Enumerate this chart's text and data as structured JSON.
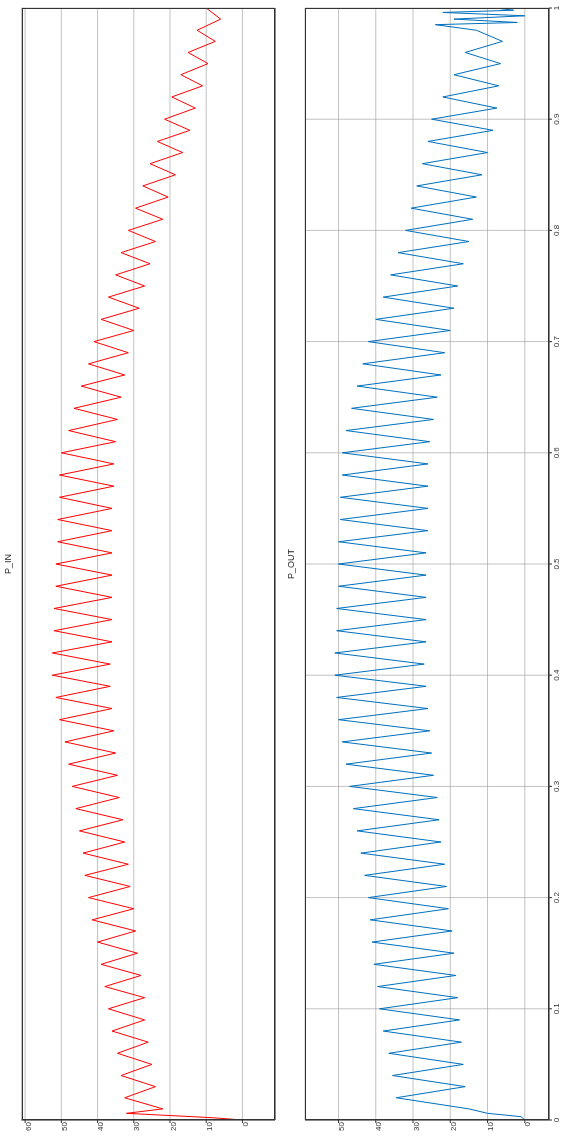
{
  "chart_data": [
    {
      "type": "line",
      "title": "P_IN",
      "color": "#ff0000",
      "grid": true,
      "tick_labels": "x",
      "xlim": [
        61,
        -9
      ],
      "xticks": [
        60,
        50,
        40,
        30,
        20,
        10,
        0
      ],
      "ylim": [
        0,
        1
      ],
      "yticks": [
        0,
        0.1,
        0.2,
        0.3,
        0.4,
        0.5,
        0.6,
        0.7,
        0.8,
        0.9,
        1
      ],
      "x": [
        0,
        8,
        20,
        32,
        22,
        32.5,
        24,
        33.5,
        25,
        34.5,
        26,
        36,
        27,
        37,
        27,
        38,
        28,
        39,
        29,
        40,
        29.5,
        41.5,
        30,
        42.5,
        31,
        43.5,
        31.5,
        44,
        32.5,
        45,
        33,
        46,
        34,
        47,
        34.5,
        48,
        35,
        49,
        35.5,
        50.5,
        36,
        51.5,
        36.5,
        52.5,
        36.5,
        52.5,
        36,
        52,
        36,
        52,
        36,
        51.5,
        36,
        51.5,
        36,
        51,
        36,
        51,
        36,
        50.5,
        35.5,
        50.5,
        35.5,
        50,
        35,
        48,
        34.5,
        46.5,
        33.5,
        44.5,
        32.5,
        42.5,
        31.5,
        41,
        30,
        39,
        28.5,
        37,
        27,
        35,
        25.5,
        33.5,
        24,
        31.5,
        22,
        29.5,
        20.5,
        27.5,
        18.5,
        25.5,
        16.5,
        23.5,
        14.5,
        21.5,
        13,
        19.5,
        11,
        17,
        9.5,
        15,
        7.5,
        12.5,
        6,
        10
      ],
      "values": [
        0,
        0.002,
        0.004,
        0.006,
        0.01,
        0.02,
        0.03,
        0.04,
        0.05,
        0.06,
        0.07,
        0.08,
        0.09,
        0.1,
        0.11,
        0.12,
        0.13,
        0.14,
        0.15,
        0.16,
        0.17,
        0.18,
        0.19,
        0.2,
        0.21,
        0.22,
        0.23,
        0.24,
        0.25,
        0.26,
        0.27,
        0.28,
        0.29,
        0.3,
        0.31,
        0.32,
        0.33,
        0.34,
        0.35,
        0.36,
        0.37,
        0.38,
        0.39,
        0.4,
        0.41,
        0.42,
        0.43,
        0.44,
        0.45,
        0.46,
        0.47,
        0.48,
        0.49,
        0.5,
        0.51,
        0.52,
        0.53,
        0.54,
        0.55,
        0.56,
        0.57,
        0.58,
        0.59,
        0.6,
        0.61,
        0.62,
        0.63,
        0.64,
        0.65,
        0.66,
        0.67,
        0.68,
        0.69,
        0.7,
        0.71,
        0.72,
        0.73,
        0.74,
        0.75,
        0.76,
        0.77,
        0.78,
        0.79,
        0.8,
        0.81,
        0.82,
        0.83,
        0.84,
        0.85,
        0.86,
        0.87,
        0.88,
        0.89,
        0.9,
        0.91,
        0.92,
        0.93,
        0.94,
        0.95,
        0.96,
        0.97,
        0.98,
        0.99,
        1
      ]
    },
    {
      "type": "line",
      "title": "P_OUT",
      "color": "#0070bd",
      "grid": true,
      "xlim": [
        59,
        -6.5
      ],
      "xticks": [
        50,
        40,
        30,
        20,
        10,
        0
      ],
      "ylim": [
        0,
        1
      ],
      "yticks": [
        0,
        0.1,
        0.2,
        0.3,
        0.4,
        0.5,
        0.6,
        0.7,
        0.8,
        0.9,
        1
      ],
      "x": [
        0,
        1,
        10,
        15,
        34.5,
        16,
        35.5,
        16.5,
        36.5,
        17,
        38,
        17.5,
        39,
        18,
        39.5,
        18.5,
        40.5,
        19,
        41,
        19.5,
        41.5,
        20.5,
        42,
        21,
        43,
        21.5,
        44,
        22.5,
        45,
        23,
        46,
        23.5,
        47,
        24.5,
        48,
        25,
        49,
        25.5,
        50,
        26,
        50.5,
        26.5,
        51,
        27,
        51,
        26.5,
        50.5,
        26.5,
        50.5,
        26.5,
        50,
        26.5,
        50,
        26.5,
        50,
        26,
        49.5,
        26,
        49.5,
        26,
        49,
        26,
        49,
        25.5,
        48,
        24.5,
        46.5,
        23.5,
        45,
        22.5,
        43.5,
        21.5,
        42,
        20,
        40,
        19,
        38,
        18,
        36,
        16.5,
        34,
        15,
        32,
        14,
        30.5,
        13,
        29,
        11.5,
        27.5,
        10,
        26,
        8.5,
        25,
        7.5,
        22,
        7,
        19,
        6.5,
        16,
        6,
        13,
        24,
        2,
        19,
        0,
        22,
        3,
        8
      ],
      "values": [
        0,
        0.003,
        0.006,
        0.01,
        0.02,
        0.03,
        0.04,
        0.05,
        0.06,
        0.07,
        0.08,
        0.09,
        0.1,
        0.11,
        0.12,
        0.13,
        0.14,
        0.15,
        0.16,
        0.17,
        0.18,
        0.19,
        0.2,
        0.21,
        0.22,
        0.23,
        0.24,
        0.25,
        0.26,
        0.27,
        0.28,
        0.29,
        0.3,
        0.31,
        0.32,
        0.33,
        0.34,
        0.35,
        0.36,
        0.37,
        0.38,
        0.39,
        0.4,
        0.41,
        0.42,
        0.43,
        0.44,
        0.45,
        0.46,
        0.47,
        0.48,
        0.49,
        0.5,
        0.51,
        0.52,
        0.53,
        0.54,
        0.55,
        0.56,
        0.57,
        0.58,
        0.59,
        0.6,
        0.61,
        0.62,
        0.63,
        0.64,
        0.65,
        0.66,
        0.67,
        0.68,
        0.69,
        0.7,
        0.71,
        0.72,
        0.73,
        0.74,
        0.75,
        0.76,
        0.77,
        0.78,
        0.79,
        0.8,
        0.81,
        0.82,
        0.83,
        0.84,
        0.85,
        0.86,
        0.87,
        0.88,
        0.89,
        0.9,
        0.91,
        0.92,
        0.93,
        0.94,
        0.95,
        0.96,
        0.97,
        0.98,
        0.985,
        0.987,
        0.99,
        0.993,
        0.996,
        0.998,
        1
      ]
    }
  ]
}
